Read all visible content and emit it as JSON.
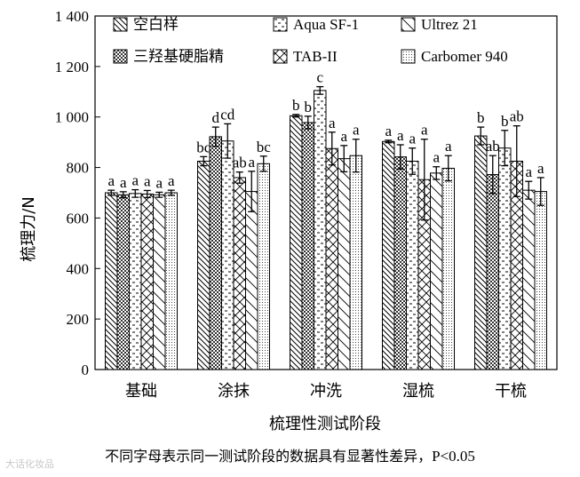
{
  "chart_data": {
    "type": "bar",
    "ylabel": "梳理力/N",
    "xlabel": "梳理性测试阶段",
    "ylim": [
      0,
      1400
    ],
    "yticks": [
      0,
      200,
      400,
      600,
      800,
      1000,
      1200,
      1400
    ],
    "ytick_labels": [
      "0",
      "200",
      "400",
      "600",
      "800",
      "1 000",
      "1 200",
      "1 400"
    ],
    "categories": [
      "基础",
      "涂抹",
      "冲洗",
      "湿梳",
      "干梳"
    ],
    "legend_position": "top-inside",
    "grid": false,
    "series": [
      {
        "name": "空白样",
        "pattern": "diag-back-wide",
        "values": [
          700,
          825,
          1005,
          903,
          925
        ],
        "errors": [
          10,
          18,
          5,
          5,
          35
        ],
        "letters": [
          "a",
          "bc",
          "b",
          "a",
          "b"
        ]
      },
      {
        "name": "三羟基硬脂精",
        "pattern": "checker-dense",
        "values": [
          692,
          922,
          978,
          842,
          772
        ],
        "errors": [
          12,
          38,
          25,
          48,
          75
        ],
        "letters": [
          "a",
          "d",
          "b",
          "a",
          "ab"
        ]
      },
      {
        "name": "Aqua SF-1",
        "pattern": "dashes",
        "values": [
          697,
          905,
          1105,
          825,
          877
        ],
        "errors": [
          15,
          68,
          15,
          52,
          70
        ],
        "letters": [
          "a",
          "cd",
          "c",
          "a",
          "b"
        ]
      },
      {
        "name": "TAB-II",
        "pattern": "crosshatch",
        "values": [
          695,
          760,
          875,
          752,
          825
        ],
        "errors": [
          14,
          22,
          65,
          160,
          140
        ],
        "letters": [
          "a",
          "ab",
          "a",
          "a",
          "ab"
        ]
      },
      {
        "name": "Ultrez 21",
        "pattern": "diag-back-sparse",
        "values": [
          692,
          705,
          835,
          778,
          710
        ],
        "errors": [
          10,
          80,
          52,
          25,
          35
        ],
        "letters": [
          "a",
          "a",
          "a",
          "a",
          "a"
        ]
      },
      {
        "name": "Carbomer 940",
        "pattern": "dots",
        "values": [
          700,
          815,
          847,
          797,
          705
        ],
        "errors": [
          10,
          30,
          65,
          50,
          55
        ],
        "letters": [
          "a",
          "bc",
          "a",
          "a",
          "a"
        ]
      }
    ],
    "legend_order": [
      "空白样",
      "Aqua SF-1",
      "Ultrez 21",
      "三羟基硬脂精",
      "TAB-II",
      "Carbomer 940"
    ]
  },
  "footnote": {
    "text": "不同字母表示同一测试阶段的数据具有显著性差异，",
    "pvalue": "P<0.05"
  },
  "watermark": "大话化妆品"
}
